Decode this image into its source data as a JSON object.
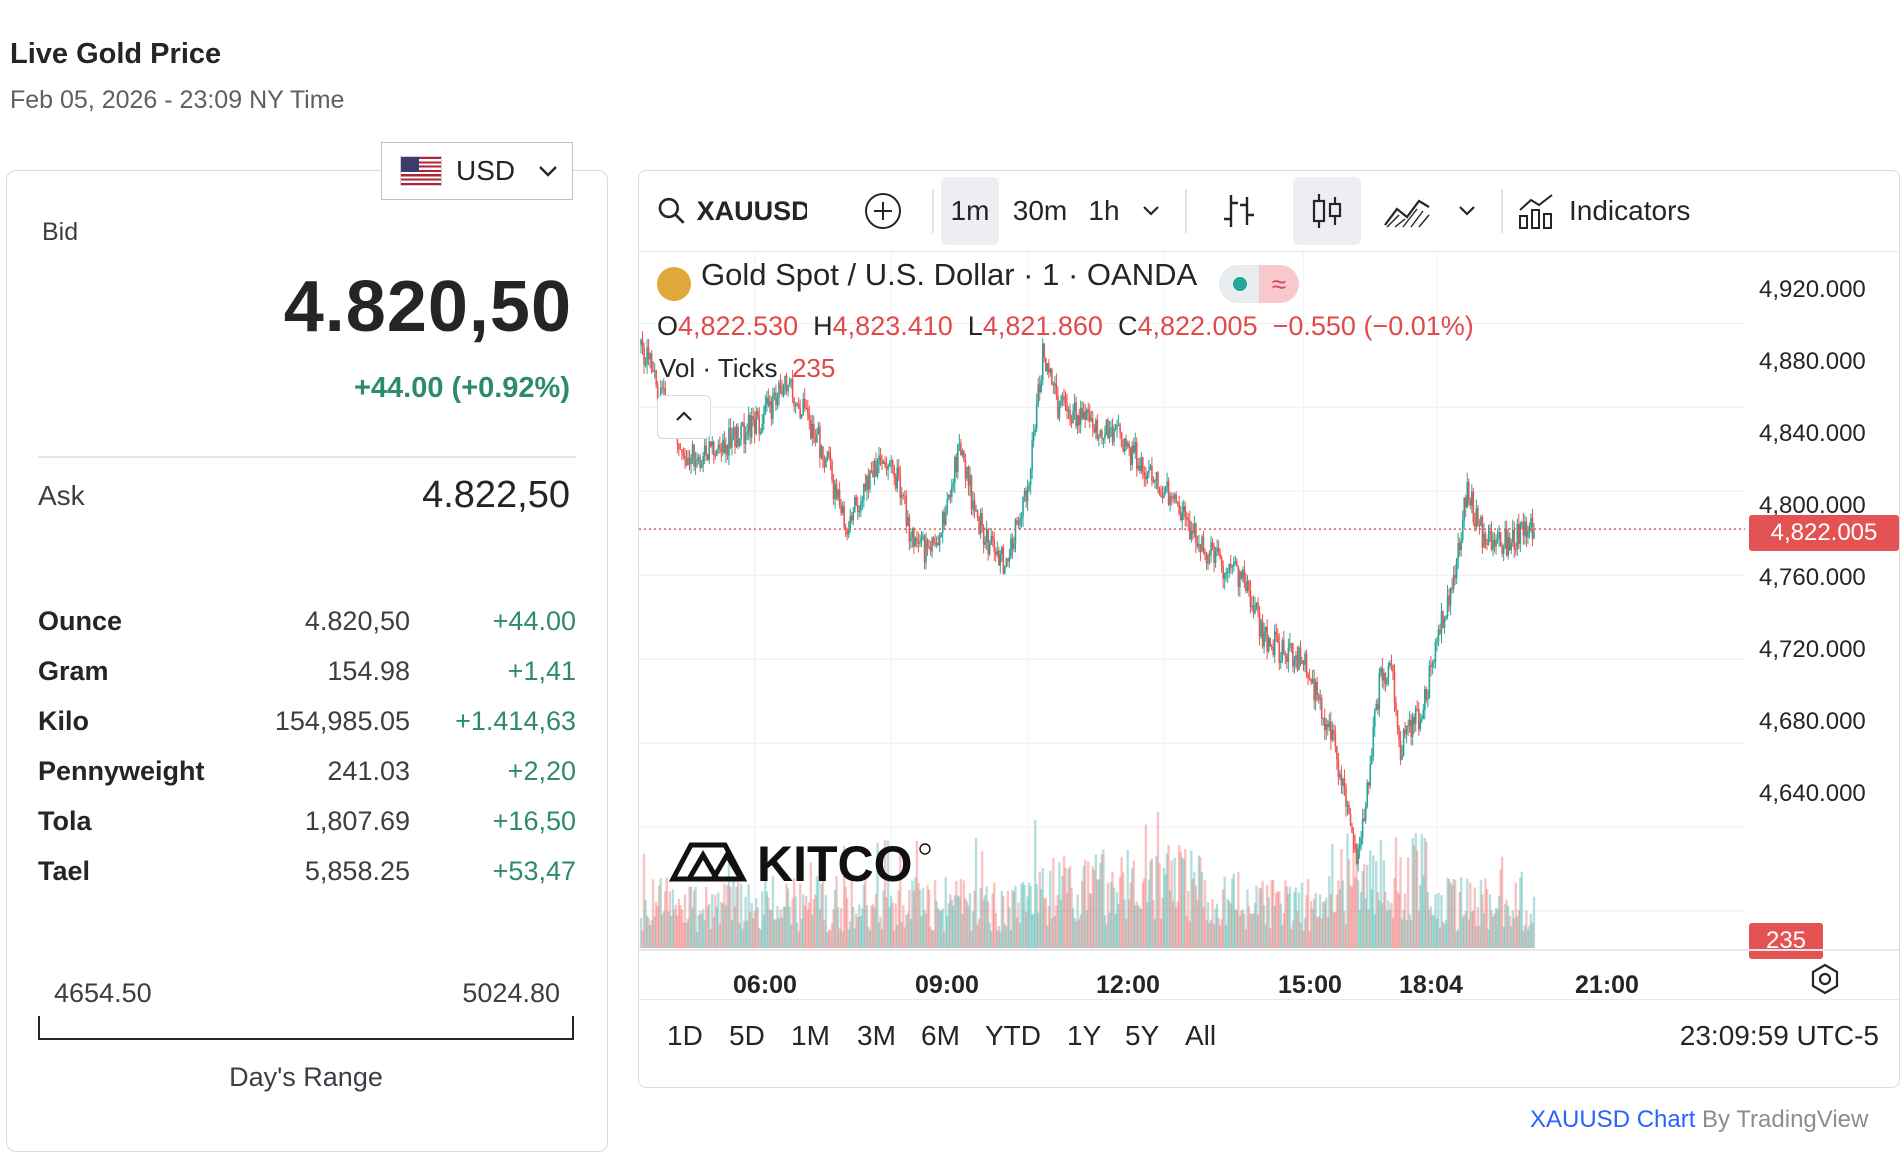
{
  "page": {
    "title": "Live Gold Price",
    "timestamp": "Feb 05, 2026 - 23:09 NY Time"
  },
  "currency": {
    "selected": "USD",
    "flag_icon": "us-flag-icon"
  },
  "quote": {
    "bid_label": "Bid",
    "bid_value": "4.820,50",
    "change": "+44.00 (+0.92%)",
    "change_color": "#2e8b68",
    "ask_label": "Ask",
    "ask_value": "4.822,50"
  },
  "units": [
    {
      "name": "Ounce",
      "price": "4.820,50",
      "change": "+44.00"
    },
    {
      "name": "Gram",
      "price": "154.98",
      "change": "+1,41"
    },
    {
      "name": "Kilo",
      "price": "154,985.05",
      "change": "+1.414,63"
    },
    {
      "name": "Pennyweight",
      "price": "241.03",
      "change": "+2,20"
    },
    {
      "name": "Tola",
      "price": "1,807.69",
      "change": "+16,50"
    },
    {
      "name": "Tael",
      "price": "5,858.25",
      "change": "+53,47"
    }
  ],
  "day_range": {
    "low": "4654.50",
    "high": "5024.80",
    "label": "Day's Range"
  },
  "chart_toolbar": {
    "symbol": "XAUUSD",
    "intervals": [
      "1m",
      "30m",
      "1h"
    ],
    "active_interval": "1m",
    "indicators_label": "Indicators"
  },
  "chart_legend": {
    "title": "Gold Spot / U.S. Dollar · 1 · OANDA",
    "o_label": "O",
    "o_value": "4,822.530",
    "h_label": "H",
    "h_value": "4,823.410",
    "l_label": "L",
    "l_value": "4,821.860",
    "c_label": "C",
    "c_value": "4,822.005",
    "change": "−0.550 (−0.01%)",
    "vol_label": "Vol · Ticks",
    "vol_value": "235",
    "toggle_symbol": "≈"
  },
  "chart_data": {
    "type": "candlestick",
    "symbol": "XAUUSD",
    "interval": "1m",
    "y_axis_labels": [
      "4,920.000",
      "4,880.000",
      "4,840.000",
      "4,800.000",
      "4,760.000",
      "4,720.000",
      "4,680.000",
      "4,640.000"
    ],
    "ylim": [
      4630,
      4935
    ],
    "x_axis_labels": [
      "06:00",
      "09:00",
      "12:00",
      "15:00",
      "18:04",
      "21:00"
    ],
    "current_price": "4,822.005",
    "current_volume": "235",
    "up_color": "#26a69a",
    "down_color": "#ef5350",
    "price_path": [
      {
        "t": "03:30",
        "p": 4910
      },
      {
        "t": "04:30",
        "p": 4855
      },
      {
        "t": "05:15",
        "p": 4862
      },
      {
        "t": "06:00",
        "p": 4872
      },
      {
        "t": "06:45",
        "p": 4890
      },
      {
        "t": "07:30",
        "p": 4860
      },
      {
        "t": "08:00",
        "p": 4823
      },
      {
        "t": "08:30",
        "p": 4845
      },
      {
        "t": "09:00",
        "p": 4856
      },
      {
        "t": "09:30",
        "p": 4815
      },
      {
        "t": "10:00",
        "p": 4810
      },
      {
        "t": "10:30",
        "p": 4860
      },
      {
        "t": "11:00",
        "p": 4820
      },
      {
        "t": "11:30",
        "p": 4805
      },
      {
        "t": "12:00",
        "p": 4840
      },
      {
        "t": "12:20",
        "p": 4906
      },
      {
        "t": "12:40",
        "p": 4880
      },
      {
        "t": "13:00",
        "p": 4878
      },
      {
        "t": "14:00",
        "p": 4866
      },
      {
        "t": "15:00",
        "p": 4840
      },
      {
        "t": "16:00",
        "p": 4810
      },
      {
        "t": "16:45",
        "p": 4798
      },
      {
        "t": "17:15",
        "p": 4768
      },
      {
        "t": "18:04",
        "p": 4760
      },
      {
        "t": "18:45",
        "p": 4720
      },
      {
        "t": "19:15",
        "p": 4662
      },
      {
        "t": "19:45",
        "p": 4750
      },
      {
        "t": "20:00",
        "p": 4760
      },
      {
        "t": "20:10",
        "p": 4718
      },
      {
        "t": "20:40",
        "p": 4735
      },
      {
        "t": "21:00",
        "p": 4768
      },
      {
        "t": "21:20",
        "p": 4795
      },
      {
        "t": "21:40",
        "p": 4840
      },
      {
        "t": "22:00",
        "p": 4820
      },
      {
        "t": "22:30",
        "p": 4816
      },
      {
        "t": "23:09",
        "p": 4822
      }
    ]
  },
  "range_buttons": [
    "1D",
    "5D",
    "1M",
    "3M",
    "6M",
    "YTD",
    "1Y",
    "5Y",
    "All"
  ],
  "clock": "23:09:59 UTC-5",
  "watermark": "KITCO",
  "attribution": {
    "link": "XAUUSD Chart",
    "by": "By TradingView"
  }
}
